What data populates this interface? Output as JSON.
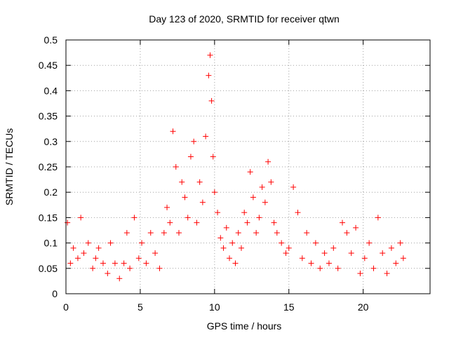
{
  "chart_data": {
    "type": "scatter",
    "title": "Day 123 of 2020, SRMTID for receiver qtwn",
    "xlabel": "GPS time / hours",
    "ylabel": "SRMTID / TECUs",
    "xlim": [
      0,
      24.5
    ],
    "ylim": [
      0,
      0.5
    ],
    "xticks": [
      0,
      5,
      10,
      15,
      20
    ],
    "xtick_labels": [
      "0",
      "5",
      "10",
      "15",
      "20"
    ],
    "yticks": [
      0,
      0.05,
      0.1,
      0.15,
      0.2,
      0.25,
      0.3,
      0.35,
      0.4,
      0.45,
      0.5
    ],
    "ytick_labels": [
      "0",
      "0.05",
      "0.1",
      "0.15",
      "0.2",
      "0.25",
      "0.3",
      "0.35",
      "0.4",
      "0.45",
      "0.5"
    ],
    "grid": true,
    "marker": "+",
    "marker_color": "#ff0000",
    "series": [
      {
        "name": "SRMTID",
        "x": [
          0.1,
          0.3,
          0.5,
          0.8,
          1.0,
          1.2,
          1.5,
          1.8,
          2.0,
          2.2,
          2.5,
          2.8,
          3.0,
          3.3,
          3.6,
          3.9,
          4.1,
          4.3,
          4.6,
          4.9,
          5.1,
          5.4,
          5.7,
          6.0,
          6.3,
          6.6,
          6.8,
          7.0,
          7.2,
          7.4,
          7.6,
          7.8,
          8.0,
          8.2,
          8.4,
          8.6,
          8.8,
          9.0,
          9.2,
          9.4,
          9.6,
          9.7,
          9.8,
          9.9,
          10.0,
          10.2,
          10.4,
          10.6,
          10.8,
          11.0,
          11.2,
          11.4,
          11.6,
          11.8,
          12.0,
          12.2,
          12.4,
          12.6,
          12.8,
          13.0,
          13.2,
          13.4,
          13.6,
          13.8,
          14.0,
          14.2,
          14.5,
          14.8,
          15.0,
          15.3,
          15.6,
          15.9,
          16.2,
          16.5,
          16.8,
          17.1,
          17.4,
          17.7,
          18.0,
          18.3,
          18.6,
          18.9,
          19.2,
          19.5,
          19.8,
          20.1,
          20.4,
          20.7,
          21.0,
          21.3,
          21.6,
          21.9,
          22.2,
          22.5,
          22.7
        ],
        "y": [
          0.14,
          0.06,
          0.09,
          0.07,
          0.15,
          0.08,
          0.1,
          0.05,
          0.07,
          0.09,
          0.06,
          0.04,
          0.1,
          0.06,
          0.03,
          0.06,
          0.12,
          0.05,
          0.15,
          0.07,
          0.1,
          0.06,
          0.12,
          0.08,
          0.05,
          0.12,
          0.17,
          0.14,
          0.32,
          0.25,
          0.12,
          0.22,
          0.19,
          0.15,
          0.27,
          0.3,
          0.14,
          0.22,
          0.18,
          0.31,
          0.43,
          0.47,
          0.38,
          0.27,
          0.2,
          0.16,
          0.11,
          0.09,
          0.13,
          0.07,
          0.1,
          0.06,
          0.12,
          0.09,
          0.16,
          0.14,
          0.24,
          0.19,
          0.12,
          0.15,
          0.21,
          0.18,
          0.26,
          0.22,
          0.14,
          0.12,
          0.1,
          0.08,
          0.09,
          0.21,
          0.16,
          0.07,
          0.12,
          0.06,
          0.1,
          0.05,
          0.08,
          0.06,
          0.09,
          0.05,
          0.14,
          0.12,
          0.08,
          0.13,
          0.04,
          0.07,
          0.1,
          0.05,
          0.15,
          0.08,
          0.04,
          0.09,
          0.06,
          0.1,
          0.07
        ]
      }
    ]
  }
}
